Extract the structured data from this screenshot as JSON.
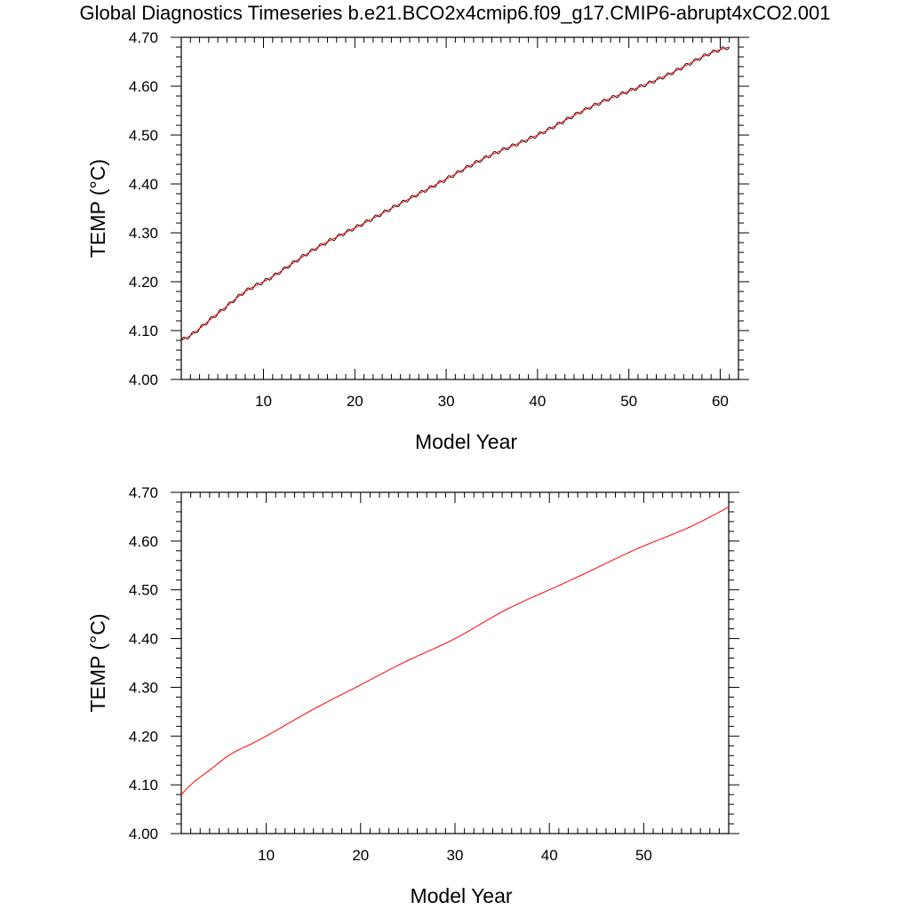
{
  "title": "Global Diagnostics Timeseries b.e21.BCO2x4cmip6.f09_g17.CMIP6-abrupt4xCO2.001",
  "colors": {
    "monthly": "#000000",
    "annual": "#ff0000",
    "axes": "#000000"
  },
  "chart_data": [
    {
      "type": "line",
      "xlabel": "Model Year",
      "ylabel": "TEMP (°C)",
      "xlim": [
        1,
        62
      ],
      "ylim": [
        4.0,
        4.7
      ],
      "xticks": [
        10,
        20,
        30,
        40,
        50,
        60
      ],
      "yticks": [
        "4.00",
        "4.10",
        "4.20",
        "4.30",
        "4.40",
        "4.50",
        "4.60",
        "4.70"
      ],
      "grid": false,
      "seasonal_amplitude": 0.004,
      "series": [
        {
          "style": "monthly",
          "color": "#000000",
          "x": [
            1,
            2,
            4,
            6,
            8,
            10,
            15,
            20,
            25,
            30,
            35,
            40,
            45,
            50,
            55,
            60,
            61
          ],
          "y": [
            4.08,
            4.09,
            4.12,
            4.15,
            4.18,
            4.2,
            4.26,
            4.31,
            4.36,
            4.41,
            4.46,
            4.5,
            4.55,
            4.59,
            4.63,
            4.675,
            4.68
          ]
        },
        {
          "style": "annual",
          "color": "#ff0000",
          "x": [
            1,
            2,
            4,
            6,
            8,
            10,
            15,
            20,
            25,
            30,
            35,
            40,
            45,
            50,
            55,
            60,
            61
          ],
          "y": [
            4.08,
            4.09,
            4.12,
            4.15,
            4.18,
            4.2,
            4.26,
            4.31,
            4.36,
            4.41,
            4.46,
            4.5,
            4.55,
            4.59,
            4.63,
            4.675,
            4.68
          ]
        }
      ]
    },
    {
      "type": "line",
      "xlabel": "Model Year",
      "ylabel": "TEMP (°C)",
      "xlim": [
        1,
        59
      ],
      "ylim": [
        4.0,
        4.7
      ],
      "xticks": [
        10,
        20,
        30,
        40,
        50
      ],
      "yticks": [
        "4.00",
        "4.10",
        "4.20",
        "4.30",
        "4.40",
        "4.50",
        "4.60",
        "4.70"
      ],
      "grid": false,
      "series": [
        {
          "style": "annual",
          "color": "#ff0000",
          "x": [
            1,
            2,
            4,
            6,
            8,
            10,
            15,
            20,
            25,
            30,
            35,
            40,
            45,
            50,
            55,
            59
          ],
          "y": [
            4.08,
            4.1,
            4.13,
            4.16,
            4.18,
            4.2,
            4.255,
            4.305,
            4.355,
            4.4,
            4.455,
            4.5,
            4.545,
            4.59,
            4.63,
            4.67
          ]
        }
      ]
    }
  ]
}
